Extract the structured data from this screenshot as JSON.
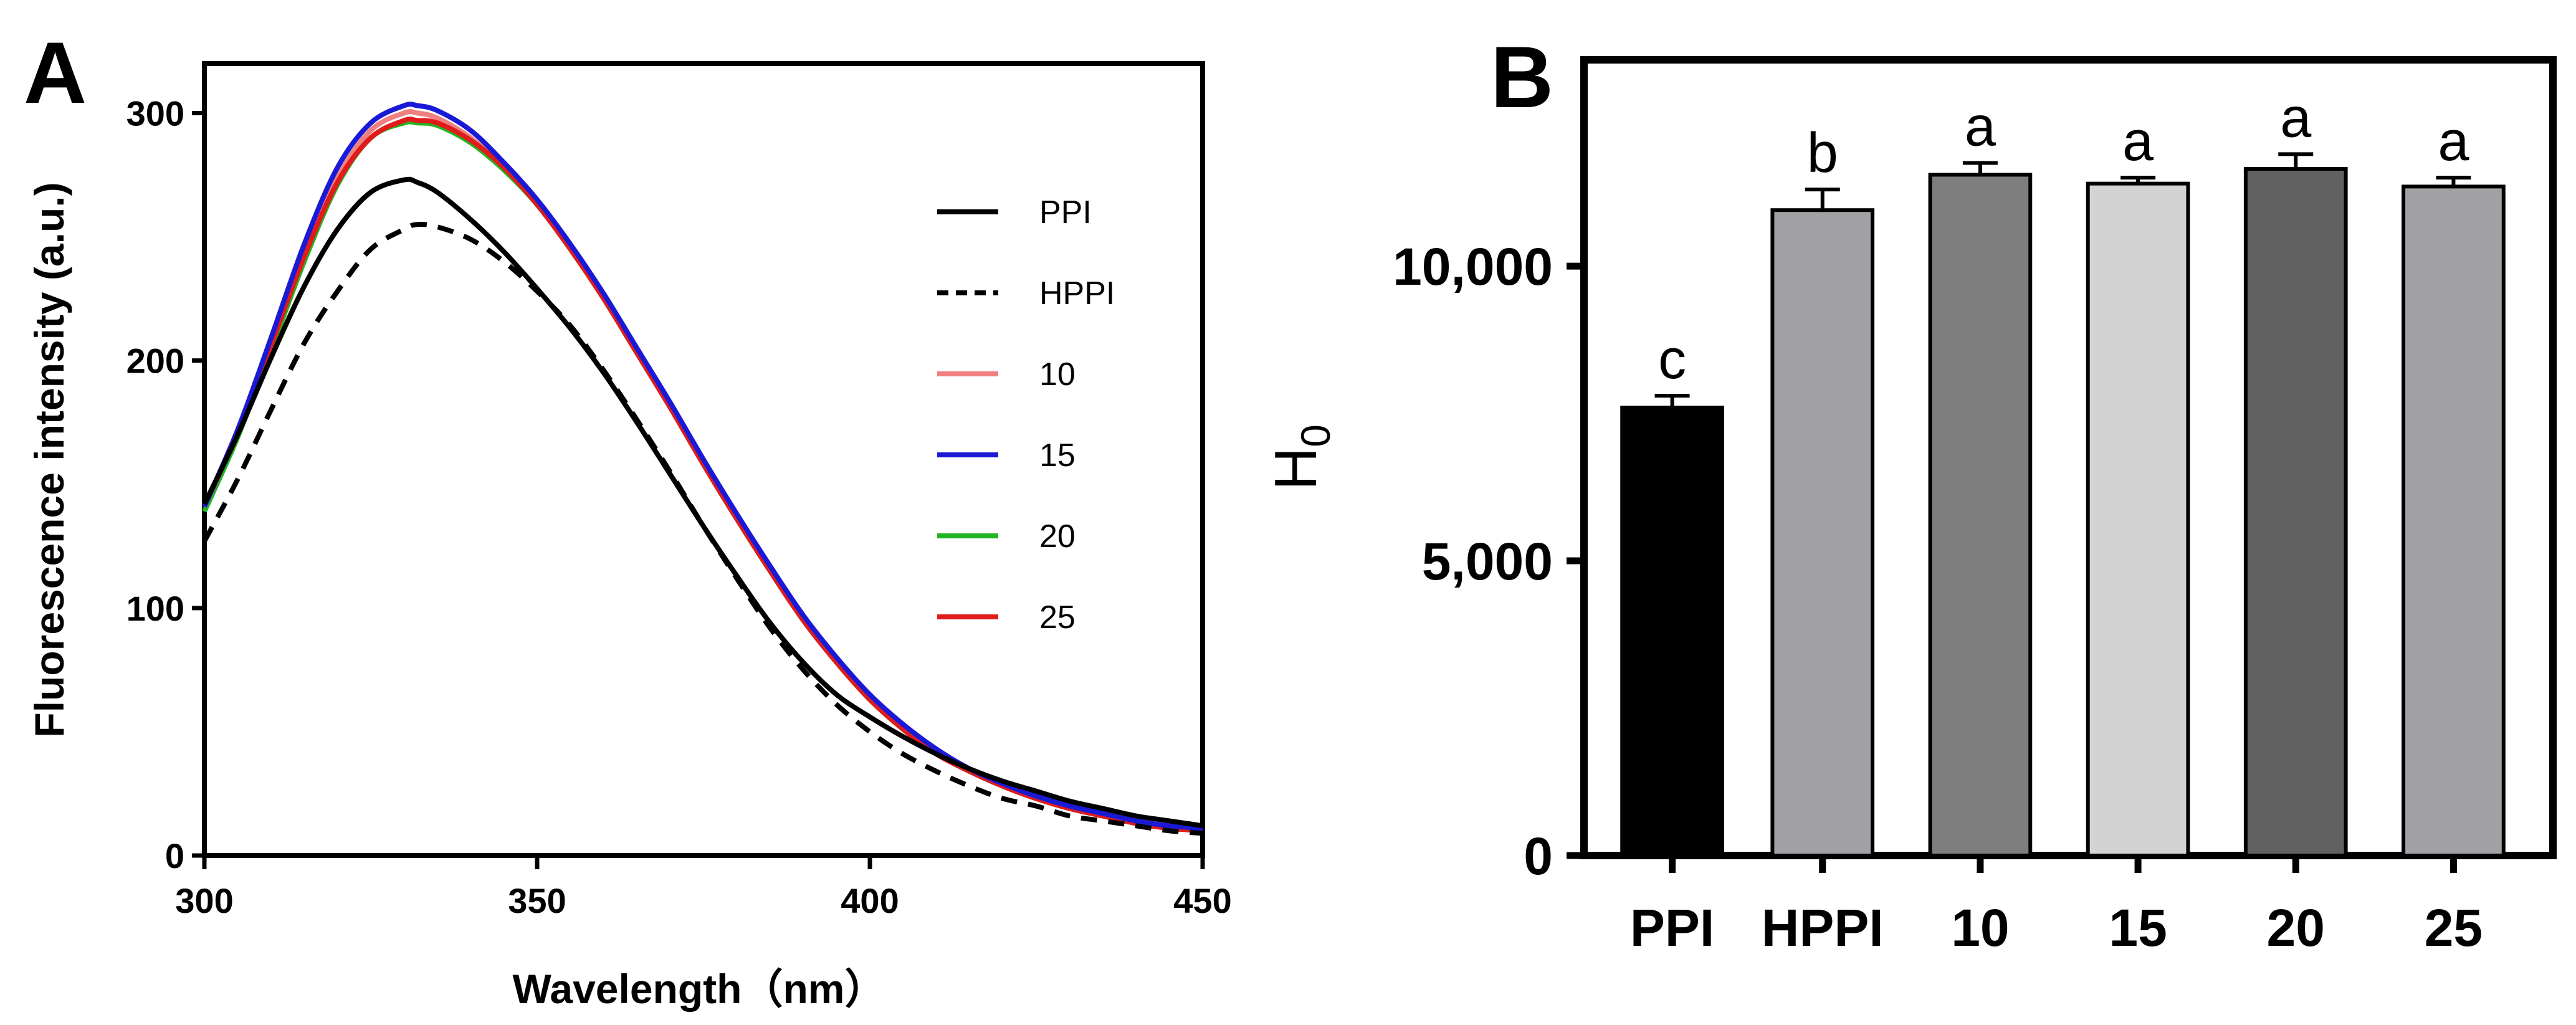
{
  "panels": {
    "a_label": "A",
    "b_label": "B"
  },
  "colors": {
    "PPI": "#000000",
    "HPPI": "#000000",
    "10": "#f08080",
    "15": "#1a1ad6",
    "20": "#22b422",
    "25": "#e01b1b",
    "bars": [
      "#000000",
      "#a2a2a6",
      "#7e7e7e",
      "#d3d3d3",
      "#616161",
      "#a2a2a6"
    ]
  },
  "chart_data": [
    {
      "type": "line",
      "panel": "A",
      "title": "",
      "xlabel": "Wavelength（nm）",
      "ylabel": "Fluorescence intensity (a.u.)",
      "xlim": [
        300,
        450
      ],
      "ylim": [
        0,
        320
      ],
      "xticks": [
        "300",
        "350",
        "400",
        "450"
      ],
      "yticks": [
        "0",
        "100",
        "200",
        "300"
      ],
      "legend_position": "right",
      "x": [
        300,
        305,
        310,
        315,
        320,
        325,
        330,
        332,
        335,
        340,
        345,
        350,
        355,
        360,
        365,
        370,
        375,
        380,
        385,
        390,
        395,
        400,
        405,
        410,
        415,
        420,
        425,
        430,
        435,
        440,
        445,
        450
      ],
      "series": [
        {
          "name": "PPI",
          "style": "solid",
          "values": [
            142,
            170,
            201,
            230,
            253,
            268,
            273,
            272,
            268,
            257,
            244,
            229,
            213,
            195,
            175,
            154,
            133,
            113,
            94,
            78,
            65,
            56,
            48,
            41,
            35,
            30,
            26,
            22,
            19,
            16,
            14,
            12
          ]
        },
        {
          "name": "HPPI",
          "style": "dashed",
          "values": [
            127,
            152,
            180,
            207,
            228,
            245,
            253,
            255,
            254,
            249,
            240,
            228,
            214,
            196,
            176,
            155,
            133,
            112,
            92,
            75,
            61,
            50,
            41,
            34,
            28,
            23,
            20,
            16,
            14,
            12,
            10,
            9
          ]
        },
        {
          "name": "10",
          "style": "solid",
          "values": [
            141,
            172,
            208,
            244,
            274,
            293,
            300,
            300,
            298,
            290,
            278,
            263,
            245,
            225,
            203,
            181,
            158,
            136,
            115,
            95,
            78,
            63,
            51,
            41,
            34,
            28,
            23,
            19,
            16,
            13,
            11,
            10
          ]
        },
        {
          "name": "15",
          "style": "solid",
          "values": [
            141,
            172,
            209,
            247,
            278,
            296,
            303,
            303,
            301,
            293,
            280,
            265,
            247,
            227,
            205,
            183,
            160,
            138,
            117,
            97,
            80,
            65,
            53,
            43,
            35,
            29,
            24,
            20,
            17,
            14,
            12,
            11
          ]
        },
        {
          "name": "20",
          "style": "solid",
          "values": [
            139,
            169,
            204,
            240,
            271,
            290,
            296,
            296,
            295,
            288,
            277,
            263,
            245,
            225,
            203,
            181,
            158,
            136,
            115,
            95,
            78,
            63,
            51,
            41,
            34,
            28,
            23,
            19,
            16,
            13,
            11,
            10
          ]
        },
        {
          "name": "25",
          "style": "solid",
          "values": [
            141,
            171,
            206,
            242,
            272,
            290,
            297,
            297,
            296,
            289,
            278,
            263,
            245,
            225,
            203,
            181,
            158,
            136,
            115,
            95,
            78,
            63,
            51,
            41,
            34,
            28,
            23,
            19,
            16,
            13,
            11,
            10
          ]
        }
      ]
    },
    {
      "type": "bar",
      "panel": "B",
      "title": "",
      "xlabel": "",
      "ylabel": "H",
      "ylabel_subscript": "0",
      "ylim": [
        0,
        13500
      ],
      "yticks": [
        "0",
        "5,000",
        "10,000"
      ],
      "categories": [
        "PPI",
        "HPPI",
        "10",
        "15",
        "20",
        "25"
      ],
      "values": [
        7600,
        10950,
        11550,
        11400,
        11650,
        11350
      ],
      "errors": [
        200,
        350,
        200,
        100,
        250,
        150
      ],
      "significance": [
        "c",
        "b",
        "a",
        "a",
        "a",
        "a"
      ]
    }
  ]
}
